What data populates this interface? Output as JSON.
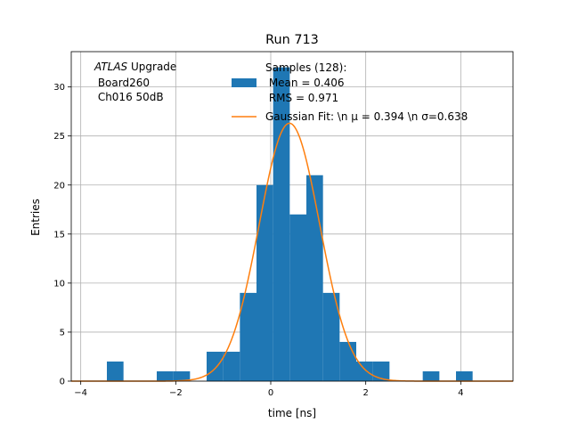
{
  "chart_data": {
    "type": "bar",
    "title": "Run 713",
    "xlabel": "time [ns]",
    "ylabel": "Entries",
    "xlim": [
      -4.2,
      5.1
    ],
    "ylim": [
      0,
      33.6
    ],
    "xticks": [
      -4,
      -2,
      0,
      2,
      4
    ],
    "xtick_labels": [
      "−4",
      "−2",
      "0",
      "2",
      "4"
    ],
    "yticks": [
      0,
      5,
      10,
      15,
      20,
      25,
      30
    ],
    "yticks_labels": [
      "0",
      "5",
      "10",
      "15",
      "20",
      "25",
      "30"
    ],
    "grid": true,
    "bin_width": 0.35,
    "bins": [
      {
        "x0": -3.45,
        "count": 2
      },
      {
        "x0": -2.4,
        "count": 1
      },
      {
        "x0": -2.05,
        "count": 1
      },
      {
        "x0": -1.35,
        "count": 3
      },
      {
        "x0": -1.0,
        "count": 3
      },
      {
        "x0": -0.65,
        "count": 9
      },
      {
        "x0": -0.3,
        "count": 20
      },
      {
        "x0": 0.05,
        "count": 32
      },
      {
        "x0": 0.4,
        "count": 17
      },
      {
        "x0": 0.75,
        "count": 21
      },
      {
        "x0": 1.1,
        "count": 9
      },
      {
        "x0": 1.45,
        "count": 4
      },
      {
        "x0": 1.8,
        "count": 2
      },
      {
        "x0": 2.15,
        "count": 2
      },
      {
        "x0": 3.2,
        "count": 1
      },
      {
        "x0": 3.9,
        "count": 1
      }
    ],
    "fit": {
      "mu": 0.394,
      "sigma": 0.638,
      "amplitude": 26.3
    },
    "legend": {
      "placement": "upper-right",
      "histogram_label_lines": [
        "Samples (128):",
        " Mean = 0.406",
        " RMS = 0.971"
      ],
      "fit_label": "Gaussian Fit: \\n μ = 0.394 \\n σ=0.638"
    },
    "annotation": {
      "italic_word": "ATLAS",
      "rest_first_line": " Upgrade",
      "line2": " Board260",
      "line3": " Ch016 50dB"
    },
    "colors": {
      "histogram": "#1f77b4",
      "fit": "#ff7f0e",
      "grid": "#b0b0b0"
    }
  }
}
